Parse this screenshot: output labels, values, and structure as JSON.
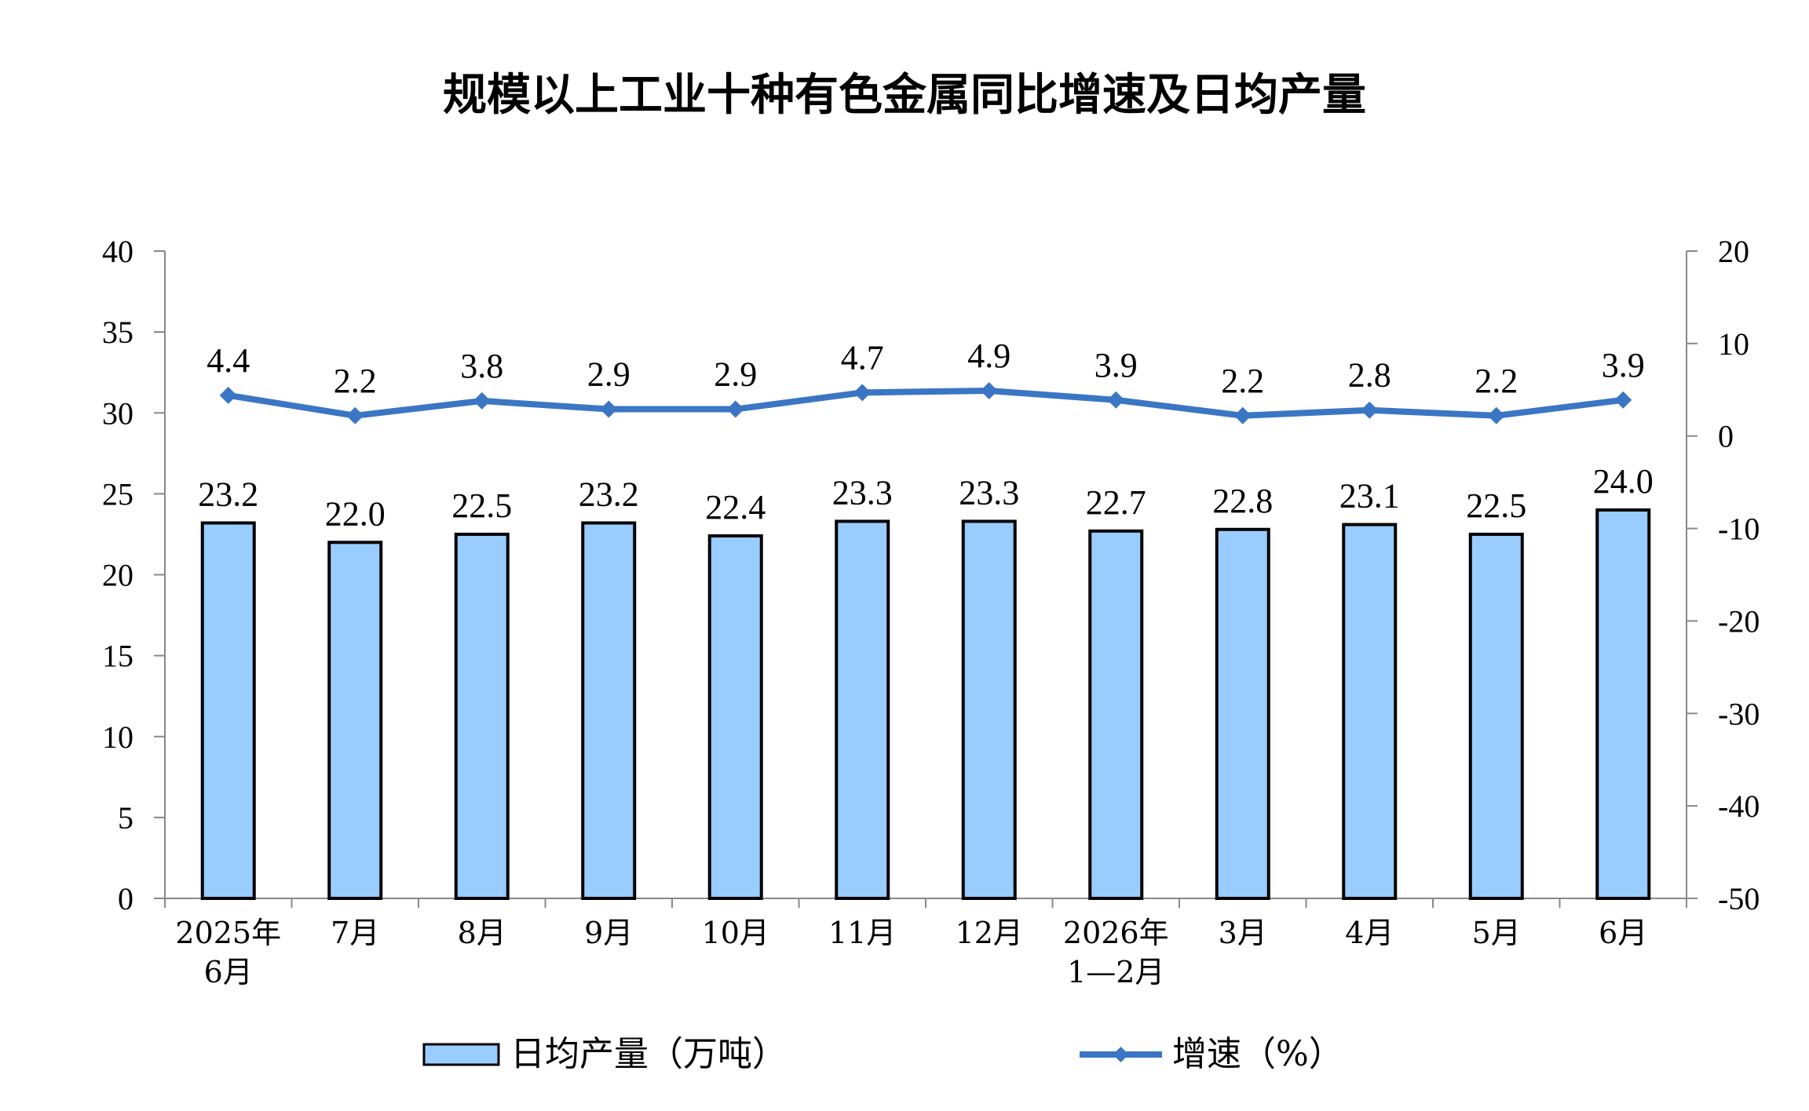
{
  "chart_data": {
    "type": "bar",
    "title": "规模以上工业十种有色金属同比增速及日均产量",
    "categories": [
      "2025年\n6月",
      "7月",
      "8月",
      "9月",
      "10月",
      "11月",
      "12月",
      "2026年\n1—2月",
      "3月",
      "4月",
      "5月",
      "6月"
    ],
    "y_left": {
      "min": 0,
      "max": 40,
      "step": 5,
      "ticks": [
        "0",
        "5",
        "10",
        "15",
        "20",
        "25",
        "30",
        "35",
        "40"
      ]
    },
    "y_right": {
      "min": -50,
      "max": 20,
      "step": 10,
      "ticks": [
        "-50",
        "-40",
        "-30",
        "-20",
        "-10",
        "0",
        "10",
        "20"
      ]
    },
    "series": [
      {
        "name": "日均产量（万吨）",
        "type": "bar",
        "axis": "left",
        "color": "#99ccff",
        "values": [
          23.2,
          22.0,
          22.5,
          23.2,
          22.4,
          23.3,
          23.3,
          22.7,
          22.8,
          23.1,
          22.5,
          24.0
        ],
        "labels": [
          "23.2",
          "22.0",
          "22.5",
          "23.2",
          "22.4",
          "23.3",
          "23.3",
          "22.7",
          "22.8",
          "23.1",
          "22.5",
          "24.0"
        ]
      },
      {
        "name": "增速（%）",
        "type": "line",
        "axis": "right",
        "color": "#3a76c4",
        "values": [
          4.4,
          2.2,
          3.8,
          2.9,
          2.9,
          4.7,
          4.9,
          3.9,
          2.2,
          2.8,
          2.2,
          3.9
        ],
        "labels": [
          "4.4",
          "2.2",
          "3.8",
          "2.9",
          "2.9",
          "4.7",
          "4.9",
          "3.9",
          "2.2",
          "2.8",
          "2.2",
          "3.9"
        ]
      }
    ],
    "grid": false,
    "legend_position": "bottom"
  }
}
